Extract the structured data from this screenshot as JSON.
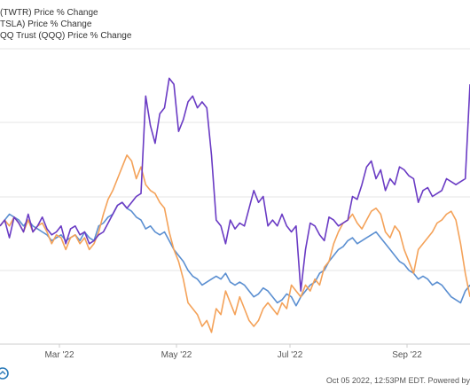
{
  "legend": [
    "(TWTR) Price % Change",
    "TSLA) Price % Change",
    "QQ Trust (QQQ) Price % Change"
  ],
  "footer": "Oct 05 2022, 12:53PM EDT. Powered by",
  "colors": {
    "twtr": "#6a3bc4",
    "tsla": "#f4a259",
    "qqq": "#5b8fd1",
    "grid": "#e6e6e6",
    "axis": "#cccccc"
  },
  "chart_data": {
    "type": "line",
    "x_tick_labels": [
      "Mar '22",
      "May '22",
      "Jul '22",
      "Sep '22"
    ],
    "grid": true,
    "series": [
      {
        "name": "(TWTR) Price % Change",
        "values": [
          0.0,
          1.0,
          -2.0,
          1.5,
          0.5,
          -1.0,
          2.0,
          -1.0,
          0.0,
          1.5,
          -0.5,
          -1.5,
          -1.0,
          0.0,
          -3.0,
          -0.5,
          0.0,
          -1.5,
          -1.0,
          -3.0,
          -2.5,
          -1.5,
          -1.0,
          0.5,
          2.0,
          3.5,
          4.0,
          3.0,
          4.0,
          5.0,
          5.5,
          22.0,
          17.0,
          14.0,
          19.0,
          20.0,
          25.0,
          24.0,
          16.0,
          18.0,
          21.0,
          22.0,
          20.0,
          21.0,
          20.0,
          12.0,
          1.0,
          0.0,
          -3.0,
          1.0,
          -0.5,
          0.5,
          0.0,
          3.0,
          6.0,
          4.0,
          5.0,
          0.0,
          1.0,
          0.0,
          2.0,
          0.0,
          -1.0,
          0.0,
          -11.0,
          -4.0,
          0.5,
          0.0,
          -1.5,
          -2.5,
          1.5,
          1.0,
          0.0,
          0.5,
          1.0,
          5.0,
          4.5,
          7.0,
          10.0,
          11.0,
          8.0,
          9.5,
          6.0,
          8.0,
          7.0,
          10.0,
          9.5,
          8.5,
          8.0,
          4.0,
          6.0,
          6.5,
          5.0,
          5.5,
          6.0,
          8.0,
          7.5,
          7.0,
          7.5,
          8.0,
          24.0
        ]
      },
      {
        "name": "TSLA) Price % Change",
        "values": [
          0.0,
          1.0,
          0.0,
          1.5,
          0.5,
          -1.0,
          1.0,
          -1.0,
          0.0,
          0.5,
          -1.0,
          -3.0,
          -1.5,
          -2.0,
          -4.0,
          -2.0,
          -1.5,
          -3.0,
          -2.0,
          -4.0,
          -3.0,
          -1.0,
          2.0,
          4.5,
          6.0,
          8.0,
          10.0,
          12.0,
          11.0,
          8.0,
          10.0,
          7.0,
          6.0,
          5.5,
          4.0,
          3.0,
          -1.0,
          -4.0,
          -6.0,
          -9.0,
          -13.0,
          -14.0,
          -15.0,
          -17.0,
          -16.0,
          -18.0,
          -14.0,
          -15.0,
          -11.0,
          -13.0,
          -15.0,
          -12.0,
          -14.0,
          -16.0,
          -17.0,
          -16.0,
          -14.0,
          -13.0,
          -14.0,
          -15.0,
          -13.0,
          -14.0,
          -10.0,
          -11.0,
          -12.0,
          -10.0,
          -11.0,
          -9.0,
          -10.0,
          -7.0,
          -6.0,
          -3.0,
          -1.0,
          0.5,
          1.0,
          2.0,
          0.5,
          -0.5,
          1.0,
          2.5,
          3.0,
          2.0,
          -1.0,
          -2.0,
          0.0,
          -1.0,
          -4.0,
          -6.0,
          -8.0,
          -4.0,
          -3.0,
          -2.0,
          -1.0,
          0.5,
          1.0,
          2.0,
          2.5,
          1.0,
          -3.0,
          -8.0,
          -12.0
        ]
      },
      {
        "name": "QQ Trust (QQQ) Price % Change",
        "values": [
          0.0,
          1.0,
          2.0,
          1.5,
          1.0,
          0.0,
          1.0,
          0.0,
          -0.5,
          -1.0,
          -1.5,
          -2.5,
          -2.0,
          -1.5,
          -2.5,
          -2.0,
          -1.5,
          -2.5,
          -1.0,
          -2.0,
          -2.5,
          0.0,
          0.5,
          1.5,
          2.0,
          3.5,
          4.0,
          3.0,
          2.5,
          1.5,
          1.0,
          -0.5,
          0.0,
          -1.0,
          -1.5,
          -1.0,
          -2.5,
          -4.0,
          -5.0,
          -6.0,
          -7.5,
          -8.5,
          -9.0,
          -10.0,
          -9.5,
          -9.0,
          -8.5,
          -9.0,
          -8.0,
          -9.5,
          -10.0,
          -9.5,
          -10.0,
          -11.0,
          -12.0,
          -11.5,
          -10.5,
          -11.0,
          -12.0,
          -13.0,
          -12.5,
          -11.5,
          -12.0,
          -13.5,
          -12.0,
          -11.0,
          -10.0,
          -9.5,
          -8.0,
          -7.5,
          -6.0,
          -5.0,
          -4.0,
          -3.5,
          -2.5,
          -2.0,
          -3.0,
          -2.5,
          -2.0,
          -1.5,
          -1.0,
          -2.0,
          -3.0,
          -4.0,
          -5.0,
          -6.0,
          -6.5,
          -7.5,
          -8.0,
          -9.0,
          -8.5,
          -9.0,
          -10.0,
          -9.5,
          -10.0,
          -11.0,
          -12.0,
          -12.5,
          -13.0,
          -11.0,
          -10.0
        ]
      }
    ]
  }
}
